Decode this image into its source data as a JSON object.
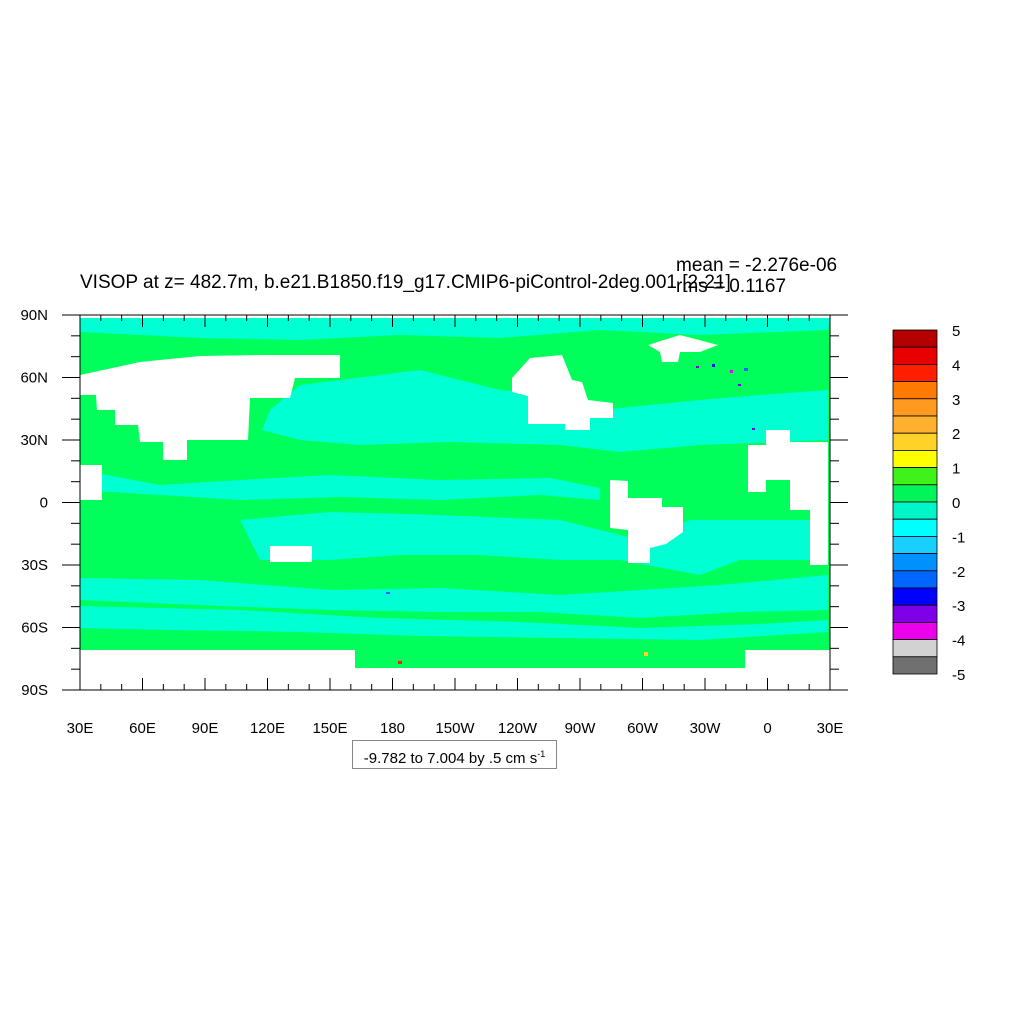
{
  "title": "VISOP at z= 482.7m, b.e21.B1850.f19_g17.CMIP6-piControl-2deg.001 [2-21]",
  "stats": {
    "mean": "mean = -2.276e-06",
    "rms": "rms = 0.1167"
  },
  "units_text": {
    "range": "-9.782 to 7.004 by .5 cm s",
    "exponent": "-1"
  },
  "axes": {
    "x_ticks": [
      "30E",
      "60E",
      "90E",
      "120E",
      "150E",
      "180",
      "150W",
      "120W",
      "90W",
      "60W",
      "30W",
      "0",
      "30E"
    ],
    "y_ticks": [
      "90N",
      "60N",
      "30N",
      "0",
      "30S",
      "60S",
      "90S"
    ]
  },
  "colorbar": {
    "labels": [
      "5",
      "4",
      "3",
      "2",
      "1",
      "0",
      "-1",
      "-2",
      "-3",
      "-4",
      "-5"
    ],
    "colors": [
      "#b40000",
      "#e60000",
      "#ff1f00",
      "#ff7a00",
      "#ff9a1f",
      "#ffb02e",
      "#ffd22a",
      "#ffff00",
      "#3ff21a",
      "#00f55a",
      "#00f5c8",
      "#00ffff",
      "#19cfff",
      "#0091ff",
      "#0066ff",
      "#0000ff",
      "#7f00e6",
      "#ea00ea",
      "#d2d2d2",
      "#707070"
    ]
  },
  "map_colors": {
    "ocean_main": "#00ff5a",
    "ocean_band": "#00ffd2",
    "land": "#ffffff"
  }
}
